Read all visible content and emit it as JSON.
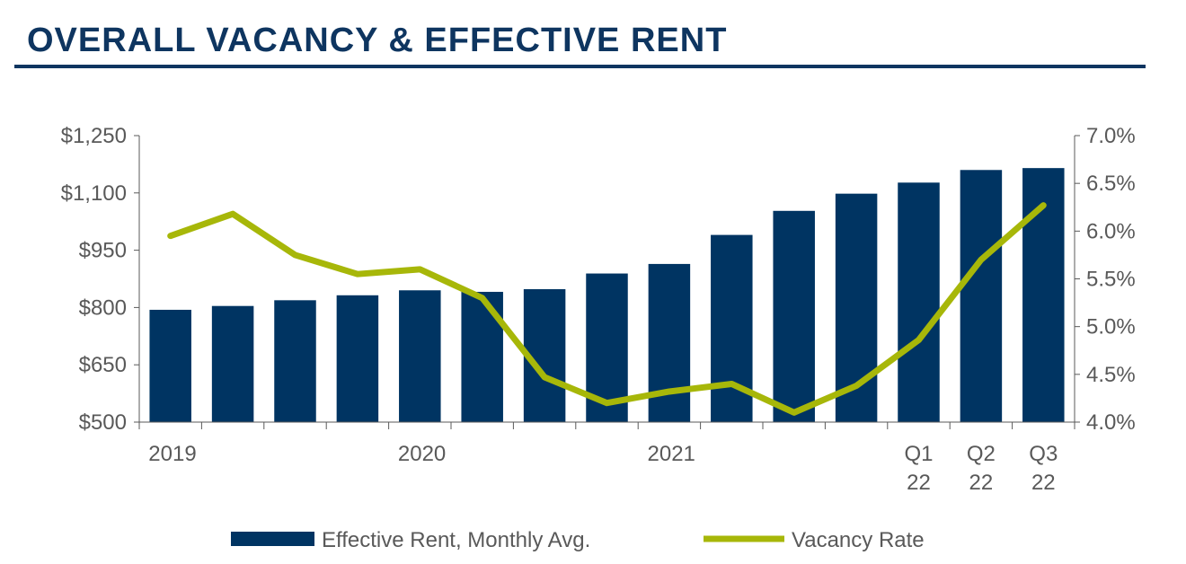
{
  "header": {
    "title": "OVERALL VACANCY & EFFECTIVE RENT"
  },
  "colors": {
    "bar": "#003462",
    "line": "#a7b709",
    "title": "#0e3560",
    "axis": "#595959"
  },
  "chart_data": {
    "type": "bar",
    "categories": [
      "2019 Q1",
      "2019 Q2",
      "2019 Q3",
      "2019 Q4",
      "2020 Q1",
      "2020 Q2",
      "2020 Q3",
      "2020 Q4",
      "2021 Q1",
      "2021 Q2",
      "2021 Q3",
      "2021 Q4",
      "2022 Q1",
      "2022 Q2",
      "2022 Q3"
    ],
    "x_tick_labels": [
      {
        "index": 0,
        "lines": [
          "2019"
        ]
      },
      {
        "index": 4,
        "lines": [
          "2020"
        ]
      },
      {
        "index": 8,
        "lines": [
          "2021"
        ]
      },
      {
        "index": 12,
        "lines": [
          "Q1",
          "22"
        ]
      },
      {
        "index": 13,
        "lines": [
          "Q2",
          "22"
        ]
      },
      {
        "index": 14,
        "lines": [
          "Q3",
          "22"
        ]
      }
    ],
    "series": [
      {
        "name": "Effective Rent, Monthly Avg.",
        "type": "bar",
        "axis": "left",
        "values": [
          794,
          804,
          819,
          832,
          845,
          841,
          848,
          889,
          914,
          990,
          1053,
          1098,
          1127,
          1160,
          1165
        ]
      },
      {
        "name": "Vacancy Rate",
        "type": "line",
        "axis": "right",
        "values": [
          5.95,
          6.18,
          5.75,
          5.55,
          5.6,
          5.3,
          4.47,
          4.2,
          4.32,
          4.4,
          4.1,
          4.38,
          4.86,
          5.7,
          6.27
        ]
      }
    ],
    "left_axis": {
      "min": 500,
      "max": 1250,
      "ticks": [
        500,
        650,
        800,
        950,
        1100,
        1250
      ],
      "tick_labels": [
        "$500",
        "$650",
        "$800",
        "$950",
        "$1,100",
        "$1,250"
      ]
    },
    "right_axis": {
      "min": 4.0,
      "max": 7.0,
      "ticks": [
        4.0,
        4.5,
        5.0,
        5.5,
        6.0,
        6.5,
        7.0
      ],
      "tick_labels": [
        "4.0%",
        "4.5%",
        "5.0%",
        "5.5%",
        "6.0%",
        "6.5%",
        "7.0%"
      ]
    },
    "legend": {
      "position": "bottom",
      "items": [
        "Effective Rent, Monthly Avg.",
        "Vacancy Rate"
      ]
    }
  }
}
